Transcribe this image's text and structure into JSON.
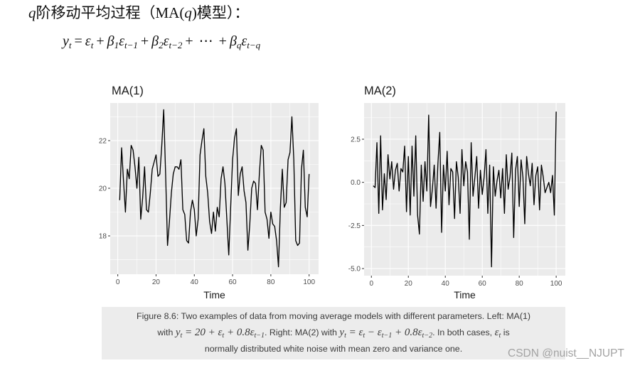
{
  "heading": {
    "parts": [
      "q",
      "阶移动平均过程（MA(",
      "q",
      ")模型）："
    ]
  },
  "formula": {
    "terms": [
      {
        "base": "y",
        "sub": "t"
      },
      {
        "op": "="
      },
      {
        "base": "ε",
        "sub": "t"
      },
      {
        "op": "+"
      },
      {
        "base": "β",
        "sub": "1"
      },
      {
        "base": "ε",
        "sub": "t−1"
      },
      {
        "op": "+"
      },
      {
        "base": "β",
        "sub": "2"
      },
      {
        "base": "ε",
        "sub": "t−2"
      },
      {
        "op": "+"
      },
      {
        "op": "⋯"
      },
      {
        "op": "+"
      },
      {
        "base": "β",
        "sub": "q"
      },
      {
        "base": "ε",
        "sub": "t−q"
      }
    ]
  },
  "colors": {
    "panel_background": "#ebebeb",
    "gridline": "#ffffff",
    "series_line": "#000000",
    "tick_mark": "#333333",
    "caption_background": "#ececec"
  },
  "chart_data": [
    {
      "type": "line",
      "title": "MA(1)",
      "xlabel": "Time",
      "grid": true,
      "xlim": [
        -3.95,
        104.95
      ],
      "ylim": [
        16.39,
        23.58
      ],
      "xticks": [
        0,
        20,
        40,
        60,
        80,
        100
      ],
      "xtick_labels": [
        "0",
        "20",
        "40",
        "60",
        "80",
        "100"
      ],
      "yticks": [
        18,
        20,
        22
      ],
      "ytick_labels": [
        "18",
        "20",
        "22"
      ],
      "x": [
        1,
        2,
        3,
        4,
        5,
        6,
        7,
        8,
        9,
        10,
        11,
        12,
        13,
        14,
        15,
        16,
        17,
        18,
        19,
        20,
        21,
        22,
        23,
        24,
        25,
        26,
        27,
        28,
        29,
        30,
        31,
        32,
        33,
        34,
        35,
        36,
        37,
        38,
        39,
        40,
        41,
        42,
        43,
        44,
        45,
        46,
        47,
        48,
        49,
        50,
        51,
        52,
        53,
        54,
        55,
        56,
        57,
        58,
        59,
        60,
        61,
        62,
        63,
        64,
        65,
        66,
        67,
        68,
        69,
        70,
        71,
        72,
        73,
        74,
        75,
        76,
        77,
        78,
        79,
        80,
        81,
        82,
        83,
        84,
        85,
        86,
        87,
        88,
        89,
        90,
        91,
        92,
        93,
        94,
        95,
        96,
        97,
        98,
        99,
        100
      ],
      "values": [
        19.5,
        21.7,
        20.3,
        19.0,
        20.8,
        20.4,
        21.8,
        21.6,
        20.9,
        20.0,
        21.3,
        18.7,
        19.6,
        20.9,
        19.1,
        19.0,
        19.8,
        20.8,
        21.1,
        21.4,
        20.5,
        20.6,
        21.8,
        23.3,
        20.6,
        17.6,
        18.6,
        19.8,
        20.6,
        20.9,
        20.9,
        20.8,
        21.2,
        19.1,
        18.9,
        17.8,
        17.7,
        19.0,
        19.5,
        19.1,
        18.0,
        18.7,
        21.4,
        22.0,
        22.5,
        20.5,
        19.8,
        18.6,
        18.1,
        19.0,
        18.2,
        19.2,
        18.8,
        20.4,
        20.9,
        20.2,
        18.7,
        17.2,
        19.2,
        21.2,
        22.1,
        22.5,
        19.7,
        20.6,
        20.9,
        19.9,
        19.4,
        17.4,
        18.5,
        20.0,
        20.3,
        20.2,
        19.1,
        20.6,
        21.8,
        21.6,
        19.0,
        18.7,
        17.9,
        19.0,
        18.5,
        18.4,
        17.8,
        16.7,
        19.2,
        20.8,
        19.2,
        19.4,
        21.2,
        21.5,
        23.0,
        21.2,
        17.8,
        17.6,
        17.7,
        20.8,
        21.6,
        19.2,
        18.8,
        20.6
      ]
    },
    {
      "type": "line",
      "title": "MA(2)",
      "xlabel": "Time",
      "grid": true,
      "xlim": [
        -3.95,
        104.95
      ],
      "ylim": [
        -5.41,
        4.6
      ],
      "xticks": [
        0,
        20,
        40,
        60,
        80,
        100
      ],
      "xtick_labels": [
        "0",
        "20",
        "40",
        "60",
        "80",
        "100"
      ],
      "yticks": [
        -5,
        -2.5,
        0,
        2.5
      ],
      "ytick_labels": [
        "-5.0",
        "-2.5",
        "0.0",
        "2.5"
      ],
      "x": [
        1,
        2,
        3,
        4,
        5,
        6,
        7,
        8,
        9,
        10,
        11,
        12,
        13,
        14,
        15,
        16,
        17,
        18,
        19,
        20,
        21,
        22,
        23,
        24,
        25,
        26,
        27,
        28,
        29,
        30,
        31,
        32,
        33,
        34,
        35,
        36,
        37,
        38,
        39,
        40,
        41,
        42,
        43,
        44,
        45,
        46,
        47,
        48,
        49,
        50,
        51,
        52,
        53,
        54,
        55,
        56,
        57,
        58,
        59,
        60,
        61,
        62,
        63,
        64,
        65,
        66,
        67,
        68,
        69,
        70,
        71,
        72,
        73,
        74,
        75,
        76,
        77,
        78,
        79,
        80,
        81,
        82,
        83,
        84,
        85,
        86,
        87,
        88,
        89,
        90,
        91,
        92,
        93,
        94,
        95,
        96,
        97,
        98,
        99,
        100
      ],
      "values": [
        -0.2,
        -0.3,
        2.3,
        -1.8,
        2.7,
        -1.6,
        0.5,
        -1.0,
        1.6,
        0.2,
        1.2,
        -0.4,
        0.7,
        1.1,
        -0.5,
        0.8,
        0.6,
        2.1,
        -1.7,
        1.5,
        -1.9,
        2.1,
        -0.8,
        2.7,
        -1.9,
        -3.0,
        1.0,
        -1.1,
        1.2,
        -0.5,
        3.9,
        -1.4,
        -0.4,
        1.0,
        -1.5,
        1.1,
        2.9,
        -2.9,
        1.0,
        -0.5,
        1.8,
        -1.3,
        0.8,
        0.6,
        -2.1,
        1.2,
        0.3,
        -1.8,
        1.9,
        -0.2,
        1.2,
        0.6,
        -3.3,
        2.3,
        -0.8,
        0.3,
        1.5,
        -1.5,
        0.7,
        -0.7,
        0.3,
        1.9,
        -1.8,
        1.0,
        -4.9,
        0.9,
        -0.8,
        0.1,
        0.7,
        -0.9,
        0.8,
        -1.8,
        1.6,
        -0.4,
        0.3,
        1.7,
        -3.2,
        0.7,
        1.5,
        -1.4,
        1.3,
        0.3,
        -2.4,
        1.5,
        0.5,
        -0.2,
        1.1,
        -1.3,
        0.4,
        0.9,
        -1.6,
        1.0,
        0.3,
        -0.6,
        -0.3,
        0.0,
        -0.6,
        0.4,
        -1.9,
        4.1
      ]
    }
  ],
  "caption": {
    "line1": "Figure 8.6: Two examples of data from moving average models with different parameters. Left: MA(1)",
    "line2": [
      {
        "text": "with "
      },
      {
        "text": "y",
        "sub": "t"
      },
      {
        "text": " = 20 + ε",
        "sub": "t"
      },
      {
        "text": " + 0.8ε",
        "sub": "t−1"
      },
      {
        "text": ". Right: MA(2) with "
      },
      {
        "text": "y",
        "sub": "t"
      },
      {
        "text": " = ε",
        "sub": "t"
      },
      {
        "text": " − ε",
        "sub": "t−1"
      },
      {
        "text": " + 0.8ε",
        "sub": "t−2"
      },
      {
        "text": ". In both cases, "
      },
      {
        "text": "ε",
        "sub": "t"
      },
      {
        "text": " is"
      }
    ],
    "line3": "normally distributed white noise with mean zero and variance one."
  },
  "watermark": "CSDN @nuist__NJUPT"
}
